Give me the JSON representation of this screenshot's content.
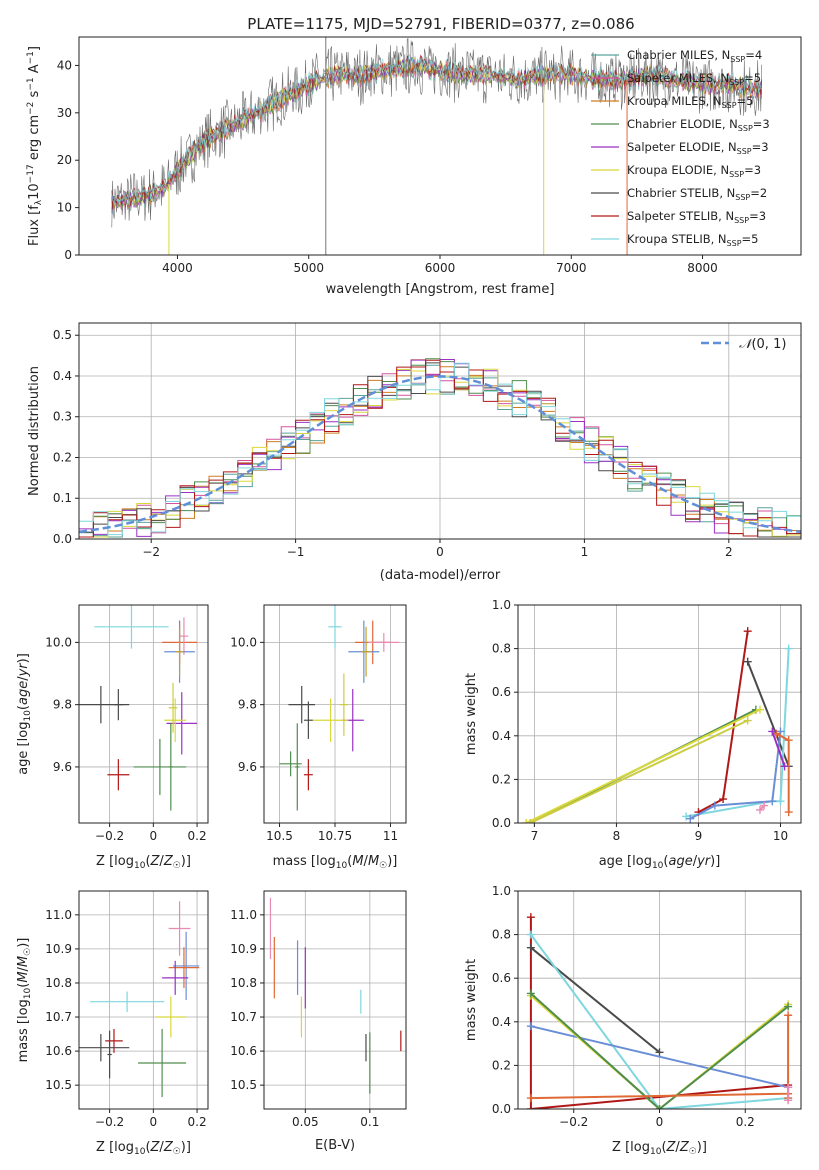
{
  "figure_title": "PLATE=1175, MJD=52791, FIBERID=0377, z=0.086",
  "chart_data": [
    {
      "type": "line",
      "name": "spectrum",
      "xlabel": "wavelength [Angstrom, rest frame]",
      "ylabel": "Flux [f_λ 10^-17 erg cm^-2 s^-1 A^-1]",
      "xlim": [
        3250,
        8750
      ],
      "ylim": [
        0,
        46
      ],
      "xticks": [
        4000,
        5000,
        6000,
        7000,
        8000
      ],
      "yticks": [
        0,
        10,
        20,
        30,
        40
      ],
      "grid": false,
      "legend_position": "upper-right",
      "legend": [
        {
          "label": "Chabrier MILES, N_SSP=4",
          "color": "#5aa39a"
        },
        {
          "label": "Salpeter MILES, N_SSP=5",
          "color": "#d3539d"
        },
        {
          "label": "Kroupa MILES, N_SSP=5",
          "color": "#d07c22"
        },
        {
          "label": "Chabrier ELODIE, N_SSP=3",
          "color": "#4f8d4f"
        },
        {
          "label": "Salpeter ELODIE, N_SSP=3",
          "color": "#9b30c4"
        },
        {
          "label": "Kroupa ELODIE, N_SSP=3",
          "color": "#d9d83a"
        },
        {
          "label": "Chabrier STELIB, N_SSP=2",
          "color": "#4a4a4a"
        },
        {
          "label": "Salpeter STELIB, N_SSP=3",
          "color": "#b01818"
        },
        {
          "label": "Kroupa STELIB, N_SSP=5",
          "color": "#7ed7de"
        }
      ],
      "continuum": [
        [
          3500,
          11
        ],
        [
          3700,
          12
        ],
        [
          3900,
          14
        ],
        [
          4000,
          18
        ],
        [
          4200,
          24
        ],
        [
          4400,
          27
        ],
        [
          4600,
          30
        ],
        [
          4800,
          33
        ],
        [
          5000,
          36
        ],
        [
          5200,
          38
        ],
        [
          5400,
          38
        ],
        [
          5600,
          39
        ],
        [
          5800,
          40
        ],
        [
          6000,
          39
        ],
        [
          6200,
          38
        ],
        [
          6400,
          38
        ],
        [
          6600,
          37
        ],
        [
          6800,
          38
        ],
        [
          7000,
          38
        ],
        [
          7200,
          37
        ],
        [
          7400,
          37
        ],
        [
          7600,
          38
        ],
        [
          7800,
          37
        ],
        [
          8000,
          36
        ],
        [
          8200,
          36
        ],
        [
          8400,
          35
        ]
      ],
      "spikes": [
        [
          5130,
          46
        ],
        [
          5130,
          0
        ],
        [
          5820,
          46
        ],
        [
          6790,
          0
        ],
        [
          7425,
          0
        ],
        [
          7425,
          44
        ]
      ]
    },
    {
      "type": "histogram",
      "name": "residuals",
      "xlabel": "(data-model)/error",
      "ylabel": "Normed distribution",
      "xlim": [
        -2.5,
        2.5
      ],
      "ylim": [
        0,
        0.53
      ],
      "xticks": [
        -2,
        -1,
        0,
        1,
        2
      ],
      "yticks": [
        0.0,
        0.1,
        0.2,
        0.3,
        0.4,
        0.5
      ],
      "grid": true,
      "legend_position": "upper-right",
      "legend": [
        {
          "label": "N(0,1)",
          "color": "#5f8fd8"
        }
      ],
      "bin_width": 0.1
    },
    {
      "type": "scatter",
      "name": "Z-age",
      "xlabel": "Z [log10(Z/Z☉)]",
      "ylabel": "age  [log10(age/yr)]",
      "xlim": [
        -0.34,
        0.25
      ],
      "ylim": [
        9.42,
        10.12
      ],
      "xticks": [
        -0.2,
        0.0,
        0.2
      ],
      "yticks": [
        9.6,
        9.8,
        10.0
      ],
      "grid": true,
      "points": [
        {
          "x": 0.12,
          "y": 10.0,
          "xerr": 0.08,
          "yerr": 0.07,
          "color": "#e06a36"
        },
        {
          "x": 0.14,
          "y": 10.02,
          "xerr": 0.02,
          "yerr": 0.06,
          "color": "#e88bb3"
        },
        {
          "x": 0.12,
          "y": 9.97,
          "xerr": 0.07,
          "yerr": 0.1,
          "color": "#6a8ed6"
        },
        {
          "x": 0.12,
          "y": 9.97,
          "xerr": 0.02,
          "yerr": 0.08,
          "color": "#c8a020"
        },
        {
          "x": -0.1,
          "y": 10.05,
          "xerr": 0.17,
          "yerr": 0.07,
          "color": "#7ed7de"
        },
        {
          "x": 0.13,
          "y": 9.74,
          "xerr": 0.07,
          "yerr": 0.1,
          "color": "#9b30c4"
        },
        {
          "x": 0.1,
          "y": 9.75,
          "xerr": 0.05,
          "yerr": 0.07,
          "color": "#d9d83a"
        },
        {
          "x": 0.09,
          "y": 9.79,
          "xerr": 0.02,
          "yerr": 0.08,
          "color": "#cccc44"
        },
        {
          "x": -0.24,
          "y": 9.8,
          "xerr": 0.13,
          "yerr": 0.06,
          "color": "#4a4a4a"
        },
        {
          "x": -0.16,
          "y": 9.8,
          "xerr": 0.02,
          "yerr": 0.05,
          "color": "#4a4a4a"
        },
        {
          "x": -0.16,
          "y": 9.575,
          "xerr": 0.05,
          "yerr": 0.05,
          "color": "#b01818"
        },
        {
          "x": 0.03,
          "y": 9.6,
          "xerr": 0.12,
          "yerr": 0.09,
          "color": "#4f8d4f"
        },
        {
          "x": 0.08,
          "y": 9.6,
          "xerr": 0.01,
          "yerr": 0.14,
          "color": "#4f8d4f"
        }
      ]
    },
    {
      "type": "scatter",
      "name": "mass-age",
      "xlabel": "mass [log10(M/M☉)]",
      "ylabel": "",
      "xlim": [
        10.43,
        11.07
      ],
      "ylim": [
        9.42,
        10.12
      ],
      "xticks": [
        10.5,
        10.75,
        11.0
      ],
      "yticks": [
        9.6,
        9.8,
        10.0
      ],
      "grid": true,
      "points": [
        {
          "x": 10.92,
          "y": 10.0,
          "xerr": 0.08,
          "yerr": 0.07,
          "color": "#e06a36"
        },
        {
          "x": 10.97,
          "y": 10.0,
          "xerr": 0.07,
          "yerr": 0.03,
          "color": "#e88bb3"
        },
        {
          "x": 10.88,
          "y": 9.97,
          "xerr": 0.07,
          "yerr": 0.1,
          "color": "#6a8ed6"
        },
        {
          "x": 10.89,
          "y": 9.97,
          "xerr": 0.02,
          "yerr": 0.08,
          "color": "#c8a020"
        },
        {
          "x": 10.75,
          "y": 10.05,
          "xerr": 0.03,
          "yerr": 0.07,
          "color": "#7ed7de"
        },
        {
          "x": 10.83,
          "y": 9.75,
          "xerr": 0.05,
          "yerr": 0.1,
          "color": "#9b30c4"
        },
        {
          "x": 10.73,
          "y": 9.75,
          "xerr": 0.08,
          "yerr": 0.07,
          "color": "#d9d83a"
        },
        {
          "x": 10.79,
          "y": 9.8,
          "xerr": 0.02,
          "yerr": 0.1,
          "color": "#cccc44"
        },
        {
          "x": 10.6,
          "y": 9.8,
          "xerr": 0.06,
          "yerr": 0.06,
          "color": "#4a4a4a"
        },
        {
          "x": 10.63,
          "y": 9.75,
          "xerr": 0.02,
          "yerr": 0.06,
          "color": "#4a4a4a"
        },
        {
          "x": 10.63,
          "y": 9.575,
          "xerr": 0.02,
          "yerr": 0.05,
          "color": "#b01818"
        },
        {
          "x": 10.55,
          "y": 9.61,
          "xerr": 0.05,
          "yerr": 0.04,
          "color": "#4f8d4f"
        },
        {
          "x": 10.58,
          "y": 9.6,
          "xerr": 0.01,
          "yerr": 0.14,
          "color": "#4f8d4f"
        }
      ]
    },
    {
      "type": "line",
      "name": "age-weight",
      "xlabel": "age  [log10(age/yr)]",
      "ylabel": "mass weight",
      "xlim": [
        6.8,
        10.25
      ],
      "ylim": [
        0.0,
        1.0
      ],
      "xticks": [
        7,
        8,
        9,
        10
      ],
      "yticks": [
        0.0,
        0.2,
        0.4,
        0.6,
        0.8,
        1.0
      ],
      "grid": true,
      "series": [
        {
          "color": "#4a4a4a",
          "x": [
            9.6,
            10.1
          ],
          "y": [
            0.74,
            0.26
          ]
        },
        {
          "color": "#b01818",
          "x": [
            9.6,
            9.3,
            9.0
          ],
          "y": [
            0.88,
            0.11,
            0.05
          ]
        },
        {
          "color": "#4f8d4f",
          "x": [
            6.95,
            9.7
          ],
          "y": [
            0.0,
            0.52
          ]
        },
        {
          "color": "#d9d83a",
          "x": [
            6.9,
            9.75
          ],
          "y": [
            0.0,
            0.52
          ]
        },
        {
          "color": "#cccc44",
          "x": [
            6.95,
            9.6
          ],
          "y": [
            0.0,
            0.47
          ]
        },
        {
          "color": "#7ed7de",
          "x": [
            8.85,
            9.9,
            10.0,
            10.1
          ],
          "y": [
            0.03,
            0.1,
            0.1,
            0.8
          ]
        },
        {
          "color": "#6a8ed6",
          "x": [
            8.9,
            9.2,
            9.9,
            10.0
          ],
          "y": [
            0.02,
            0.08,
            0.1,
            0.42
          ]
        },
        {
          "color": "#e06a36",
          "x": [
            9.95,
            10.1,
            10.1
          ],
          "y": [
            0.41,
            0.38,
            0.05
          ]
        },
        {
          "color": "#e88bb3",
          "x": [
            9.75,
            9.8
          ],
          "y": [
            0.06,
            0.08
          ]
        },
        {
          "color": "#9b30c4",
          "x": [
            9.9,
            10.05
          ],
          "y": [
            0.42,
            0.26
          ]
        }
      ]
    },
    {
      "type": "scatter",
      "name": "Z-mass",
      "xlabel": "Z [log10(Z/Z☉)]",
      "ylabel": "mass [log10(M/M☉)]",
      "xlim": [
        -0.34,
        0.25
      ],
      "ylim": [
        10.43,
        11.07
      ],
      "xticks": [
        -0.2,
        0.0,
        0.2
      ],
      "yticks": [
        10.5,
        10.6,
        10.7,
        10.8,
        10.9,
        11.0
      ],
      "grid": true,
      "points": [
        {
          "x": 0.12,
          "y": 10.96,
          "xerr": 0.05,
          "yerr": 0.08,
          "color": "#e88bb3"
        },
        {
          "x": 0.15,
          "y": 10.85,
          "xerr": 0.06,
          "yerr": 0.1,
          "color": "#6a8ed6"
        },
        {
          "x": 0.14,
          "y": 10.845,
          "xerr": 0.07,
          "yerr": 0.06,
          "color": "#e06a36"
        },
        {
          "x": 0.1,
          "y": 10.815,
          "xerr": 0.06,
          "yerr": 0.05,
          "color": "#9b30c4"
        },
        {
          "x": -0.12,
          "y": 10.745,
          "xerr": 0.17,
          "yerr": 0.03,
          "color": "#7ed7de"
        },
        {
          "x": 0.08,
          "y": 10.7,
          "xerr": 0.07,
          "yerr": 0.06,
          "color": "#d9d83a"
        },
        {
          "x": -0.18,
          "y": 10.63,
          "xerr": 0.04,
          "yerr": 0.035,
          "color": "#b01818"
        },
        {
          "x": -0.24,
          "y": 10.61,
          "xerr": 0.13,
          "yerr": 0.04,
          "color": "#4a4a4a"
        },
        {
          "x": -0.2,
          "y": 10.59,
          "xerr": 0.01,
          "yerr": 0.07,
          "color": "#4a4a4a"
        },
        {
          "x": 0.04,
          "y": 10.565,
          "xerr": 0.11,
          "yerr": 0.1,
          "color": "#4f8d4f"
        }
      ]
    },
    {
      "type": "scatter",
      "name": "EBV-mass",
      "xlabel": "E(B-V)",
      "ylabel": "",
      "xlim": [
        0.018,
        0.128
      ],
      "ylim": [
        10.43,
        11.07
      ],
      "xticks": [
        0.05,
        0.1
      ],
      "yticks": [
        10.5,
        10.6,
        10.7,
        10.8,
        10.9,
        11.0
      ],
      "grid": true,
      "points": [
        {
          "x": 0.023,
          "y": 10.96,
          "xerr": 0.0,
          "yerr": 0.09,
          "color": "#e88bb3"
        },
        {
          "x": 0.026,
          "y": 10.845,
          "xerr": 0.0,
          "yerr": 0.09,
          "color": "#e06a36"
        },
        {
          "x": 0.044,
          "y": 10.845,
          "xerr": 0.0,
          "yerr": 0.08,
          "color": "#6a8ed6"
        },
        {
          "x": 0.05,
          "y": 10.815,
          "xerr": 0.0,
          "yerr": 0.09,
          "color": "#9b30c4"
        },
        {
          "x": 0.047,
          "y": 10.7,
          "xerr": 0.0,
          "yerr": 0.06,
          "color": "#d9d83a"
        },
        {
          "x": 0.093,
          "y": 10.745,
          "xerr": 0.0,
          "yerr": 0.035,
          "color": "#7ed7de"
        },
        {
          "x": 0.097,
          "y": 10.61,
          "xerr": 0.0,
          "yerr": 0.04,
          "color": "#4a4a4a"
        },
        {
          "x": 0.1,
          "y": 10.565,
          "xerr": 0.0,
          "yerr": 0.09,
          "color": "#4f8d4f"
        },
        {
          "x": 0.124,
          "y": 10.63,
          "xerr": 0.0,
          "yerr": 0.03,
          "color": "#b01818"
        }
      ]
    },
    {
      "type": "line",
      "name": "Z-weight",
      "xlabel": "Z [log10(Z/Z☉)]",
      "ylabel": "mass weight",
      "xlim": [
        -0.33,
        0.33
      ],
      "ylim": [
        0.0,
        1.0
      ],
      "xticks": [
        -0.2,
        0.0,
        0.2
      ],
      "yticks": [
        0.0,
        0.2,
        0.4,
        0.6,
        0.8,
        1.0
      ],
      "grid": true,
      "series": [
        {
          "color": "#b01818",
          "x": [
            -0.3,
            -0.3,
            0.3
          ],
          "y": [
            0.88,
            0.0,
            0.11
          ]
        },
        {
          "color": "#4a4a4a",
          "x": [
            -0.3,
            0.0
          ],
          "y": [
            0.74,
            0.26
          ]
        },
        {
          "color": "#7ed7de",
          "x": [
            -0.3,
            0.0,
            0.3,
            0.3
          ],
          "y": [
            0.8,
            0.0,
            0.05,
            0.1
          ]
        },
        {
          "color": "#6a8ed6",
          "x": [
            -0.3,
            0.3
          ],
          "y": [
            0.38,
            0.1
          ]
        },
        {
          "color": "#d9d83a",
          "x": [
            -0.3,
            0.0,
            0.3
          ],
          "y": [
            0.52,
            0.0,
            0.48
          ]
        },
        {
          "color": "#4f8d4f",
          "x": [
            -0.3,
            0.0,
            0.3
          ],
          "y": [
            0.53,
            0.0,
            0.47
          ]
        },
        {
          "color": "#e06a36",
          "x": [
            -0.3,
            0.3,
            0.3,
            0.3
          ],
          "y": [
            0.05,
            0.07,
            0.43,
            0.05
          ]
        },
        {
          "color": "#e88bb3",
          "x": [
            0.3,
            0.3
          ],
          "y": [
            0.04,
            0.1
          ]
        }
      ]
    }
  ]
}
